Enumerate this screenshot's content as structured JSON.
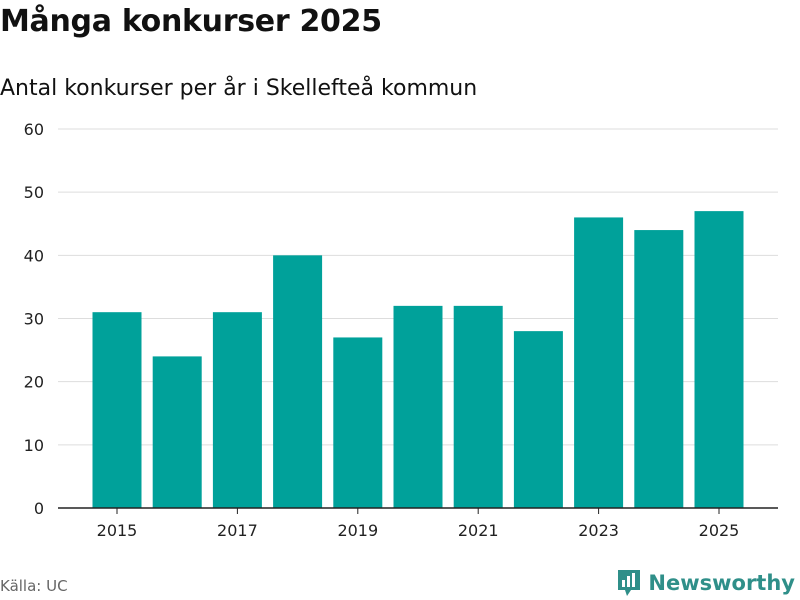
{
  "title": "Många konkurser 2025",
  "subtitle": "Antal konkurser per år i Skellefteå kommun",
  "source": "Källa: UC",
  "brand": {
    "name": "Newsworthy",
    "icon": "bar-chart-speech-bubble-icon",
    "color": "#2f8f89"
  },
  "colors": {
    "bar": "#00a19a",
    "grid": "#dddddd",
    "axis": "#222222"
  },
  "chart_data": {
    "type": "bar",
    "title": "Många konkurser 2025",
    "subtitle": "Antal konkurser per år i Skellefteå kommun",
    "categories": [
      "2015",
      "2016",
      "2017",
      "2018",
      "2019",
      "2020",
      "2021",
      "2022",
      "2023",
      "2024",
      "2025"
    ],
    "values": [
      31,
      24,
      31,
      40,
      27,
      32,
      32,
      28,
      46,
      44,
      47
    ],
    "x_tick_labels": [
      "2015",
      "2017",
      "2019",
      "2021",
      "2023",
      "2025"
    ],
    "y_ticks": [
      0,
      10,
      20,
      30,
      40,
      50,
      60
    ],
    "ylim": [
      0,
      60
    ],
    "xlabel": "",
    "ylabel": "",
    "grid": true,
    "legend": false
  }
}
